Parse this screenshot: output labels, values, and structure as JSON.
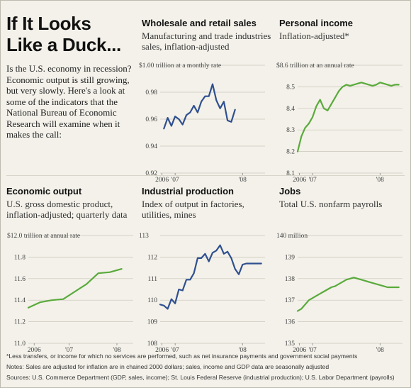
{
  "headline": [
    "If It Looks",
    "Like a Duck..."
  ],
  "intro": "Is the U.S. economy in recession? Economic output is still growing, but very slowly. Here's a look at some of the indicators that the National Bureau of Economic Research will examine when it makes the call:",
  "footnotes": {
    "asterisk": "*Less transfers, or income for which no services are performed, such as net insurance payments and government social payments",
    "notes": "Notes: Sales are adjusted for inflation are in chained 2000 dollars; sales, income and GDP data are seasonally adjusted",
    "sources": "Sources: U.S. Commerce Department (GDP, sales, income); St. Louis Federal Reserve (industrial production); U.S. Labor Department (payrolls)"
  },
  "colors": {
    "blue": "#2f4f8f",
    "green": "#5aaa3c",
    "background": "#f3f1e9",
    "grid": "#c9c6bc"
  },
  "chart_data": [
    {
      "id": "wholesale",
      "type": "line",
      "title": "Wholesale and retail sales",
      "subtitle": "Manufacturing and trade industries sales, inflation-adjusted",
      "unit_label": "$1.00 trillion at a monthly rate",
      "color": "blue",
      "ylim": [
        0.92,
        1.0
      ],
      "yticks": [
        0.92,
        0.94,
        0.96,
        0.98
      ],
      "ytick_labels": [
        "0.92",
        "0.94",
        "0.96",
        "0.98"
      ],
      "xlim": [
        0,
        28
      ],
      "xticks": [
        {
          "x": 0.5,
          "label": "2006"
        },
        {
          "x": 4,
          "label": "'07"
        },
        {
          "x": 22,
          "label": "'08"
        }
      ],
      "values": [
        0.953,
        0.961,
        0.955,
        0.962,
        0.96,
        0.956,
        0.963,
        0.965,
        0.97,
        0.965,
        0.973,
        0.977,
        0.977,
        0.986,
        0.974,
        0.968,
        0.973,
        0.959,
        0.958,
        0.967
      ],
      "x": [
        1,
        2,
        3,
        4,
        5,
        6,
        7,
        8,
        9,
        10,
        11,
        12,
        13,
        14,
        15,
        16,
        17,
        18,
        19,
        20
      ]
    },
    {
      "id": "income",
      "type": "line",
      "title": "Personal income",
      "subtitle": "Inflation-adjusted*",
      "unit_label": "$8.6 trillion at an annual rate",
      "color": "green",
      "ylim": [
        8.1,
        8.6
      ],
      "yticks": [
        8.1,
        8.2,
        8.3,
        8.4,
        8.5
      ],
      "ytick_labels": [
        "8.1",
        "8.2",
        "8.3",
        "8.4",
        "8.5"
      ],
      "xlim": [
        0,
        28
      ],
      "xticks": [
        {
          "x": 0.5,
          "label": "2006"
        },
        {
          "x": 4,
          "label": "'07"
        },
        {
          "x": 22,
          "label": "'08"
        }
      ],
      "x": [
        0,
        1,
        2,
        3,
        4,
        5,
        6,
        7,
        8,
        9,
        10,
        11,
        12,
        13,
        14,
        15,
        16,
        17,
        18,
        19,
        20,
        21,
        22,
        23,
        24,
        25,
        26,
        27
      ],
      "values": [
        8.2,
        8.27,
        8.31,
        8.33,
        8.36,
        8.41,
        8.44,
        8.4,
        8.39,
        8.42,
        8.45,
        8.48,
        8.5,
        8.51,
        8.505,
        8.51,
        8.515,
        8.52,
        8.515,
        8.51,
        8.505,
        8.51,
        8.52,
        8.515,
        8.51,
        8.505,
        8.51,
        8.51
      ]
    },
    {
      "id": "gdp",
      "type": "line",
      "title": "Economic output",
      "subtitle": "U.S. gross domestic product, inflation-adjusted; quarterly data",
      "unit_label": "$12.0 trillion at annual rate",
      "color": "green",
      "ylim": [
        11.0,
        12.0
      ],
      "yticks": [
        11.0,
        11.2,
        11.4,
        11.6,
        11.8
      ],
      "ytick_labels": [
        "11.0",
        "11.2",
        "11.4",
        "11.6",
        "11.8"
      ],
      "xlim": [
        0,
        9
      ],
      "xticks": [
        {
          "x": 0.5,
          "label": "2006"
        },
        {
          "x": 3.5,
          "label": "'07"
        },
        {
          "x": 7.6,
          "label": "'08"
        }
      ],
      "x": [
        0,
        1,
        2,
        3,
        4,
        5,
        6,
        7,
        8
      ],
      "values": [
        11.33,
        11.38,
        11.4,
        11.41,
        11.48,
        11.55,
        11.65,
        11.66,
        11.69
      ]
    },
    {
      "id": "industrial",
      "type": "line",
      "title": "Industrial production",
      "subtitle": "Index of output in factories, utilities, mines",
      "unit_label": "113",
      "color": "blue",
      "ylim": [
        108,
        113
      ],
      "yticks": [
        108,
        109,
        110,
        111,
        112
      ],
      "ytick_labels": [
        "108",
        "109",
        "110",
        "111",
        "112"
      ],
      "xlim": [
        0,
        28
      ],
      "xticks": [
        {
          "x": 0.5,
          "label": "2006"
        },
        {
          "x": 4,
          "label": "'07"
        },
        {
          "x": 22,
          "label": "'08"
        }
      ],
      "x": [
        0,
        1,
        2,
        3,
        4,
        5,
        6,
        7,
        8,
        9,
        10,
        11,
        12,
        13,
        14,
        15,
        16,
        17,
        18,
        19,
        20,
        21,
        22,
        23,
        24,
        25,
        26,
        27
      ],
      "values": [
        109.8,
        109.75,
        109.6,
        110.05,
        109.85,
        110.5,
        110.45,
        110.95,
        110.95,
        111.25,
        111.95,
        111.95,
        112.15,
        111.8,
        112.2,
        112.3,
        112.55,
        112.15,
        112.25,
        111.95,
        111.45,
        111.2,
        111.65,
        111.7,
        111.7,
        111.7,
        111.7,
        111.7
      ]
    },
    {
      "id": "jobs",
      "type": "line",
      "title": "Jobs",
      "subtitle": "Total U.S. nonfarm payrolls",
      "unit_label": "140 million",
      "color": "green",
      "ylim": [
        135,
        140
      ],
      "yticks": [
        135,
        136,
        137,
        138,
        139
      ],
      "ytick_labels": [
        "135",
        "136",
        "137",
        "138",
        "139"
      ],
      "xlim": [
        0,
        28
      ],
      "xticks": [
        {
          "x": 0.5,
          "label": "2006"
        },
        {
          "x": 4,
          "label": "'07"
        },
        {
          "x": 22,
          "label": "'08"
        }
      ],
      "x": [
        0,
        1,
        2,
        3,
        4,
        5,
        6,
        7,
        8,
        9,
        10,
        11,
        12,
        13,
        14,
        15,
        16,
        17,
        18,
        19,
        20,
        21,
        22,
        23,
        24,
        25,
        26,
        27
      ],
      "values": [
        136.5,
        136.6,
        136.8,
        137.0,
        137.1,
        137.2,
        137.3,
        137.4,
        137.5,
        137.6,
        137.65,
        137.75,
        137.85,
        137.95,
        138.0,
        138.05,
        138.0,
        137.95,
        137.9,
        137.85,
        137.8,
        137.75,
        137.7,
        137.65,
        137.6,
        137.6,
        137.6,
        137.6
      ]
    }
  ]
}
